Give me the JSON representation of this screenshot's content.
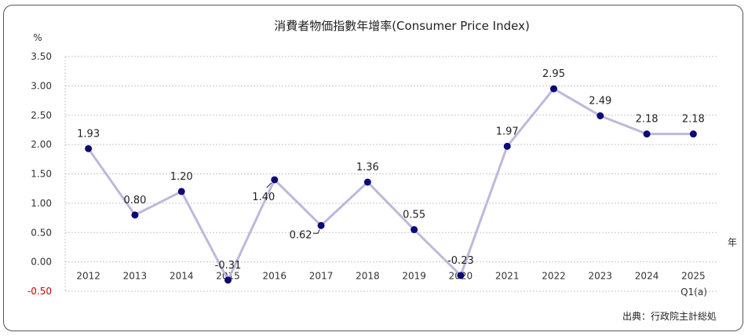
{
  "chart_data": {
    "type": "line",
    "title": "消費者物価指數年增率(Consumer Price Index)",
    "ylabel": "%",
    "xlabel": "年",
    "ylim": [
      -0.5,
      3.5
    ],
    "yticks": [
      "3.50",
      "3.00",
      "2.50",
      "2.00",
      "1.50",
      "1.00",
      "0.50",
      "0.00",
      "-0.50"
    ],
    "ytick_values": [
      3.5,
      3.0,
      2.5,
      2.0,
      1.5,
      1.0,
      0.5,
      0.0,
      -0.5
    ],
    "categories": [
      "2012",
      "2013",
      "2014",
      "2015",
      "2016",
      "2017",
      "2018",
      "2019",
      "2020",
      "2021",
      "2022",
      "2023",
      "2024",
      "2025"
    ],
    "category_note": "Q1(a)",
    "values": [
      1.93,
      0.8,
      1.2,
      -0.31,
      1.4,
      0.62,
      1.36,
      0.55,
      -0.23,
      1.97,
      2.95,
      2.49,
      2.18,
      2.18
    ],
    "labels": [
      "1.93",
      "0.80",
      "1.20",
      "-0.31",
      "1.40",
      "0.62",
      "1.36",
      "0.55",
      "-0.23",
      "1.97",
      "2.95",
      "2.49",
      "2.18",
      "2.18"
    ],
    "grid": true,
    "line_color": "#bdb8dc",
    "marker_color": "#0a0a78",
    "negative_tick_color": "#d00000"
  },
  "source": "出典：行政院主計総処"
}
